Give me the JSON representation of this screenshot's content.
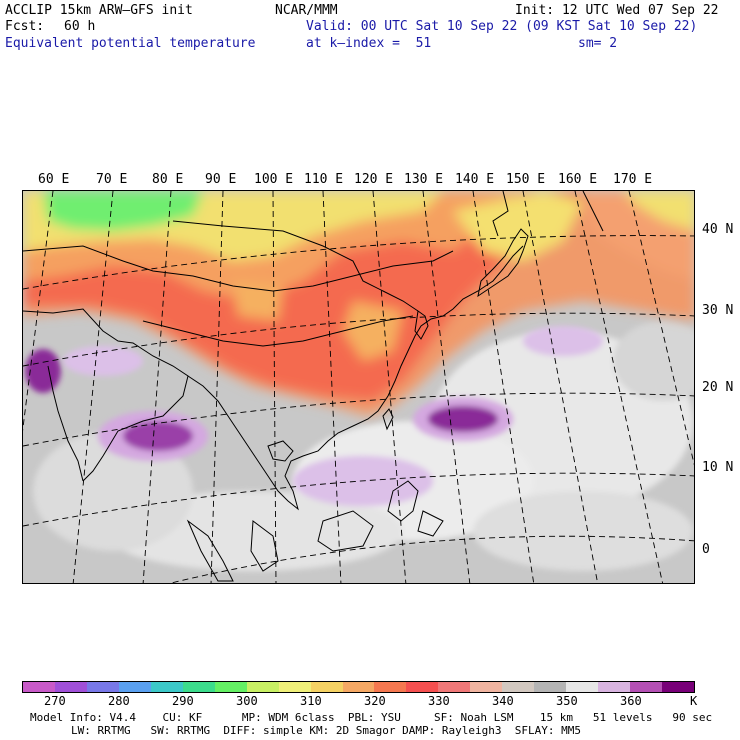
{
  "header": {
    "model": "ACCLIP 15km ARW—GFS init",
    "org": "NCAR/MMM",
    "init": "Init: 12 UTC Wed 07 Sep 22",
    "fcst_label": "Fcst:",
    "fcst_value": "60 h",
    "valid": "Valid: 00 UTC Sat 10 Sep 22 (09 KST Sat 10 Sep 22)",
    "field": "Equivalent potential temperature",
    "level": "at k—index =  51",
    "smooth": "sm= 2"
  },
  "map": {
    "lon_labels": [
      "60 E",
      "70 E",
      "80 E",
      "90 E",
      "100 E",
      "110 E",
      "120 E",
      "130 E",
      "140 E",
      "150 E",
      "160 E",
      "170 E"
    ],
    "lat_labels": [
      "40 N",
      "30 N",
      "20 N",
      "10 N",
      "0"
    ]
  },
  "colorbar": {
    "colors": [
      "#c85ac8",
      "#a050d8",
      "#7878e8",
      "#5aa0f0",
      "#3cc8c8",
      "#3cdc8c",
      "#64f064",
      "#c8f064",
      "#f0f07a",
      "#f5d264",
      "#f5a864",
      "#f57850",
      "#f55050",
      "#f07878",
      "#f0b4a0",
      "#d2c8c0",
      "#b4b4b4",
      "#e6e6e6",
      "#d8b4e0",
      "#b450b4",
      "#780078"
    ],
    "labels": [
      "270",
      "280",
      "290",
      "300",
      "310",
      "320",
      "330",
      "340",
      "350",
      "360",
      "K"
    ],
    "unit": "K"
  },
  "footer": {
    "line1": "Model Info: V4.4    CU: KF      MP: WDM 6class  PBL: YSU     SF: Noah LSM    15 km   51 levels   90 sec",
    "line2": "LW: RRTMG   SW: RRTMG  DIFF: simple KM: 2D Smagor DAMP: Rayleigh3  SFLAY: MM5"
  }
}
